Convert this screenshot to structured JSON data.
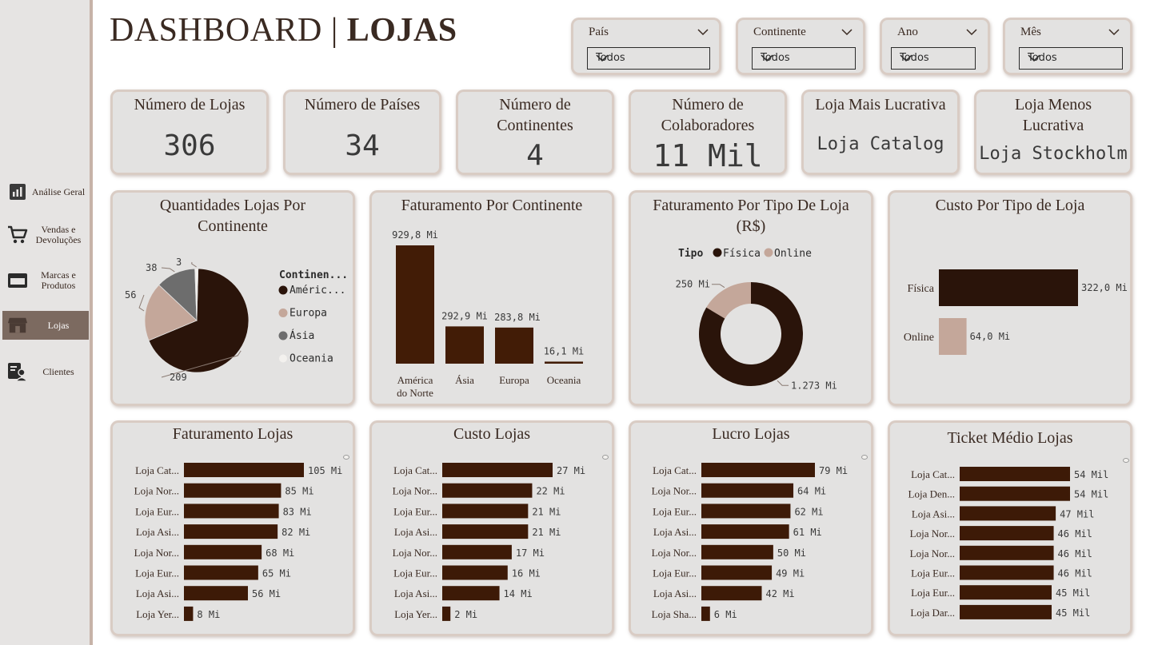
{
  "title": {
    "main": "DASHBOARD",
    "separator": "|",
    "bold": "LOJAS"
  },
  "sidebar": {
    "items": [
      {
        "label": "Análise Geral",
        "icon": "bar-chart-icon"
      },
      {
        "label": "Vendas e Devoluções",
        "icon": "cart-icon"
      },
      {
        "label": "Marcas e Produtos",
        "icon": "box-icon"
      },
      {
        "label": "Lojas",
        "icon": "store-icon",
        "active": true
      },
      {
        "label": "Clientes",
        "icon": "customer-icon"
      }
    ]
  },
  "filters": [
    {
      "label": "País",
      "value": "Todos"
    },
    {
      "label": "Continente",
      "value": "Todos"
    },
    {
      "label": "Ano",
      "value": "Todos"
    },
    {
      "label": "Mês",
      "value": "Todos"
    }
  ],
  "kpis": [
    {
      "title": "Número de Lojas",
      "value": "306"
    },
    {
      "title": "Número de Países",
      "value": "34"
    },
    {
      "title": "Número de Continentes",
      "value": "4"
    },
    {
      "title": "Número de Colaboradores",
      "value": "11 Mil"
    },
    {
      "title": "Loja Mais Lucrativa",
      "value": "Loja Catalog"
    },
    {
      "title": "Loja Menos Lucrativa",
      "value": "Loja Stockholm"
    }
  ],
  "colors": {
    "dark": "#2a140a",
    "brown": "#421c06",
    "beige": "#c4a79a",
    "gray": "#6d6d6d",
    "white": "#f3f1ee",
    "panel": "#e3e2e1"
  },
  "chart_data": [
    {
      "type": "pie",
      "title": "Quantidades Lojas Por Continente",
      "legend_title": "Continen...",
      "labels": [
        "Améric...",
        "Europa",
        "Ásia",
        "Oceania"
      ],
      "values": [
        209,
        56,
        38,
        3
      ],
      "value_labels": [
        "209",
        "56",
        "38",
        "3"
      ],
      "colors": [
        "#2a140a",
        "#c4a79a",
        "#6d6d6d",
        "#f3f1ee"
      ]
    },
    {
      "type": "bar",
      "title": "Faturamento Por Continente",
      "categories": [
        "América do Norte",
        "Ásia",
        "Europa",
        "Oceania"
      ],
      "values": [
        929.8,
        292.9,
        283.8,
        16.1
      ],
      "value_labels": [
        "929,8 Mi",
        "292,9 Mi",
        "283,8 Mi",
        "16,1 Mi"
      ]
    },
    {
      "type": "pie",
      "subtype": "donut",
      "title": "Faturamento Por Tipo De Loja (R$)",
      "legend_title": "Tipo",
      "labels": [
        "Física",
        "Online"
      ],
      "values": [
        1273,
        250
      ],
      "value_labels": [
        "1.273 Mi",
        "250 Mi"
      ],
      "colors": [
        "#2a140a",
        "#c4a79a"
      ]
    },
    {
      "type": "bar",
      "orientation": "horizontal",
      "title": "Custo Por Tipo de Loja",
      "categories": [
        "Física",
        "Online"
      ],
      "values": [
        322.0,
        64.0
      ],
      "value_labels": [
        "322,0 Mi",
        "64,0 Mi"
      ],
      "colors": [
        "#2a140a",
        "#c4a79a"
      ]
    },
    {
      "type": "bar",
      "orientation": "horizontal",
      "title": "Faturamento Lojas",
      "categories": [
        "Loja Cat...",
        "Loja Nor...",
        "Loja Eur...",
        "Loja Asi...",
        "Loja Nor...",
        "Loja Eur...",
        "Loja Asi...",
        "Loja Yer..."
      ],
      "values": [
        105,
        85,
        83,
        82,
        68,
        65,
        56,
        8
      ],
      "value_labels": [
        "105 Mi",
        "85 Mi",
        "83 Mi",
        "82 Mi",
        "68 Mi",
        "65 Mi",
        "56 Mi",
        "8 Mi"
      ]
    },
    {
      "type": "bar",
      "orientation": "horizontal",
      "title": "Custo Lojas",
      "categories": [
        "Loja Cat...",
        "Loja Nor...",
        "Loja Eur...",
        "Loja Asi...",
        "Loja Nor...",
        "Loja Eur...",
        "Loja Asi...",
        "Loja Yer..."
      ],
      "values": [
        27,
        22,
        21,
        21,
        17,
        16,
        14,
        2
      ],
      "value_labels": [
        "27 Mi",
        "22 Mi",
        "21 Mi",
        "21 Mi",
        "17 Mi",
        "16 Mi",
        "14 Mi",
        "2 Mi"
      ]
    },
    {
      "type": "bar",
      "orientation": "horizontal",
      "title": "Lucro Lojas",
      "categories": [
        "Loja Cat...",
        "Loja Nor...",
        "Loja Eur...",
        "Loja Asi...",
        "Loja Nor...",
        "Loja Eur...",
        "Loja Asi...",
        "Loja Sha..."
      ],
      "values": [
        79,
        64,
        62,
        61,
        50,
        49,
        42,
        6
      ],
      "value_labels": [
        "79 Mi",
        "64 Mi",
        "62 Mi",
        "61 Mi",
        "50 Mi",
        "49 Mi",
        "42 Mi",
        "6 Mi"
      ]
    },
    {
      "type": "bar",
      "orientation": "horizontal",
      "title": "Ticket Médio Lojas",
      "categories": [
        "Loja Cat...",
        "Loja Den...",
        "Loja Asi...",
        "Loja Nor...",
        "Loja Nor...",
        "Loja Eur...",
        "Loja Eur...",
        "Loja Dar..."
      ],
      "values": [
        54,
        54,
        47,
        46,
        46,
        46,
        45,
        45
      ],
      "value_labels": [
        "54 Mil",
        "54 Mil",
        "47 Mil",
        "46 Mil",
        "46 Mil",
        "46 Mil",
        "45 Mil",
        "45 Mil"
      ]
    }
  ]
}
